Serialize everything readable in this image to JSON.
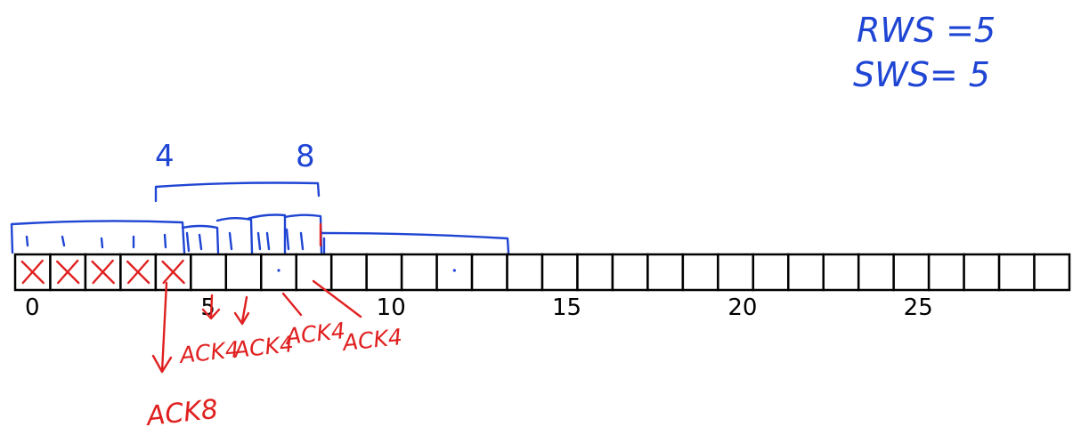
{
  "window_sizes": {
    "rws": "RWS =5",
    "sws": "SWS= 5"
  },
  "sequence": {
    "cell_count": 30,
    "tick_labels": [
      "0",
      "5",
      "10",
      "15",
      "20",
      "25"
    ],
    "tick_indices": [
      0,
      5,
      10,
      15,
      20,
      25
    ],
    "crossed_cells": [
      0,
      1,
      2,
      3,
      4
    ],
    "dotted_cells": [
      7,
      12
    ]
  },
  "bracket_labels": {
    "start": "4",
    "end": "8"
  },
  "acks": {
    "ack_a": "ACK4",
    "ack_b": "ACK4",
    "ack_c": "ACK4",
    "ack_d": "ACK4",
    "ack_8": "ACK8"
  },
  "colors": {
    "ink_black": "#000000",
    "ink_blue": "#1f45d4",
    "ink_red": "#e02020"
  }
}
